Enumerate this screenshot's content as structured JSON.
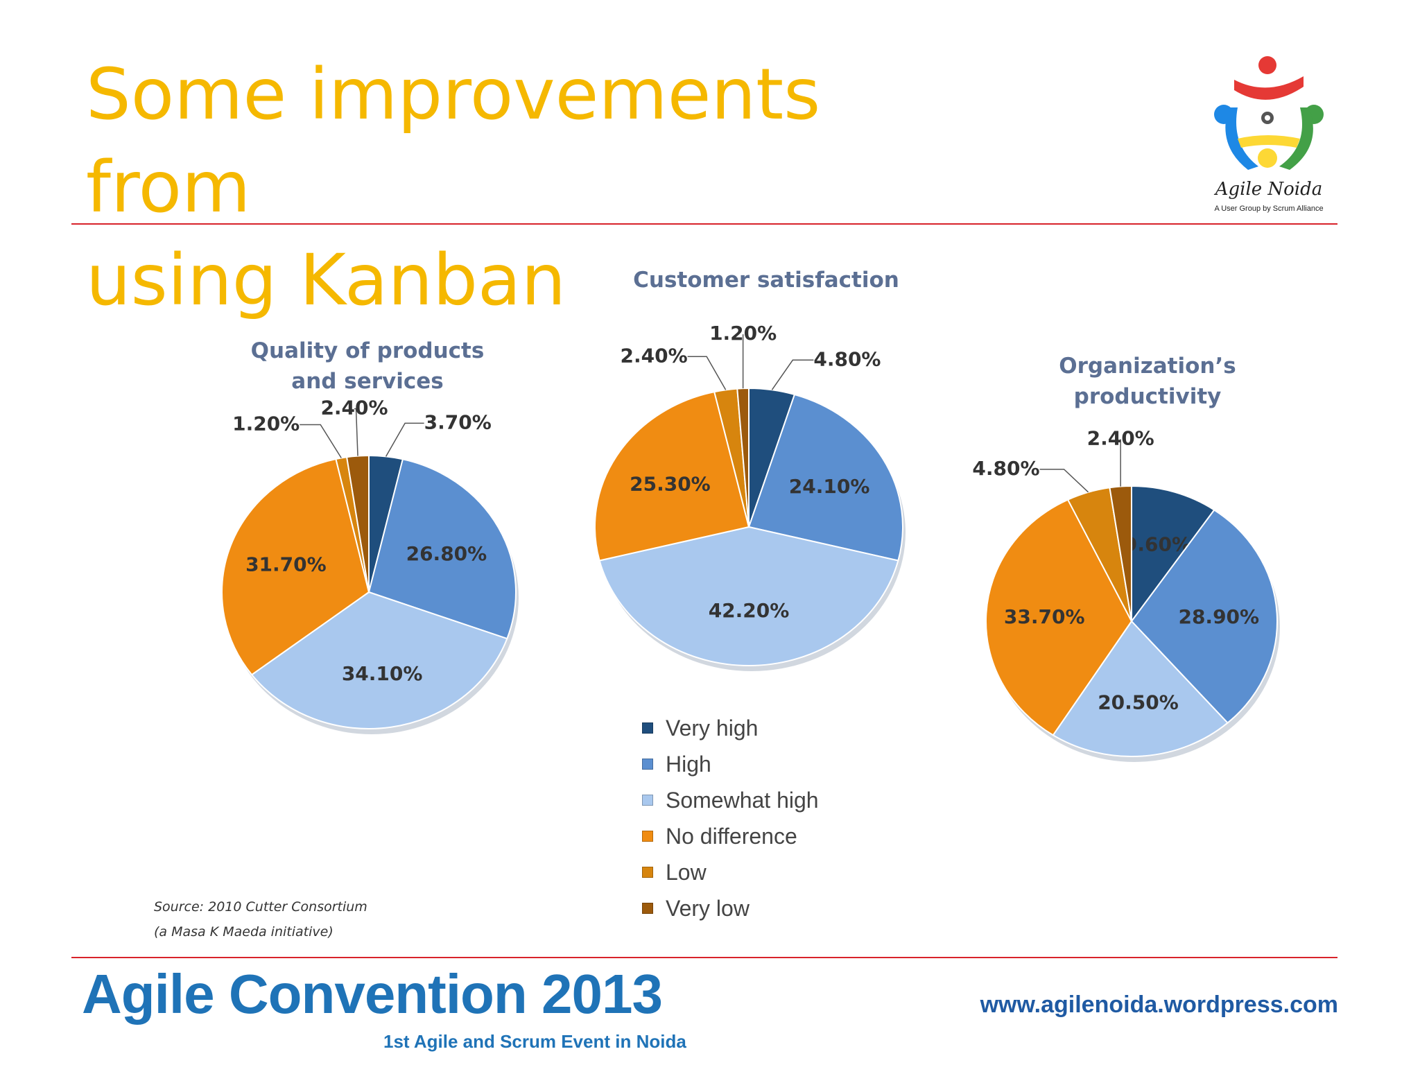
{
  "slide": {
    "title_line1": "Some improvements from",
    "title_line2": "using Kanban"
  },
  "logo": {
    "name": "Agile Noida",
    "tagline": "A User Group by Scrum Alliance"
  },
  "source": {
    "line1": "Source: 2010 Cutter Consortium",
    "line2": "(a Masa K Maeda initiative)"
  },
  "footer": {
    "title": "Agile Convention 2013",
    "subtitle": "1st Agile and Scrum Event in Noida",
    "url": "www.agilenoida.wordpress.com"
  },
  "colors": {
    "title": "#f5b800",
    "rule": "#d8222a",
    "chart_title": "#5b6f93",
    "footer": "#1f73b7"
  },
  "chart_data": [
    {
      "type": "pie",
      "title_lines": [
        "Quality of products",
        "and services"
      ],
      "categories": [
        "Very high",
        "High",
        "Somewhat high",
        "No difference",
        "Low",
        "Very low"
      ],
      "values": [
        3.7,
        26.8,
        34.1,
        31.7,
        1.2,
        2.4
      ],
      "labels": [
        "3.70%",
        "26.80%",
        "34.10%",
        "31.70%",
        "1.20%",
        "2.40%"
      ],
      "colors": [
        "#1f4e7d",
        "#5b8fd0",
        "#a9c8ee",
        "#f08c12",
        "#d7850e",
        "#9c5a0c"
      ]
    },
    {
      "type": "pie",
      "title_lines": [
        "Customer satisfaction"
      ],
      "categories": [
        "Very high",
        "High",
        "Somewhat high",
        "No difference",
        "Low",
        "Very low"
      ],
      "values": [
        4.8,
        24.1,
        42.2,
        25.3,
        2.4,
        1.2
      ],
      "labels": [
        "4.80%",
        "24.10%",
        "42.20%",
        "25.30%",
        "2.40%",
        "1.20%"
      ],
      "colors": [
        "#1f4e7d",
        "#5b8fd0",
        "#a9c8ee",
        "#f08c12",
        "#d7850e",
        "#9c5a0c"
      ]
    },
    {
      "type": "pie",
      "title_lines": [
        "Organization’s",
        "productivity"
      ],
      "categories": [
        "Very high",
        "High",
        "Somewhat high",
        "No difference",
        "Low",
        "Very low"
      ],
      "values": [
        9.6,
        28.9,
        20.5,
        33.7,
        4.8,
        2.4
      ],
      "labels": [
        "9.60%",
        "28.90%",
        "20.50%",
        "33.70%",
        "4.80%",
        "2.40%"
      ],
      "colors": [
        "#1f4e7d",
        "#5b8fd0",
        "#a9c8ee",
        "#f08c12",
        "#d7850e",
        "#9c5a0c"
      ]
    }
  ],
  "legend": {
    "items": [
      {
        "label": "Very high",
        "color": "#1f4e7d"
      },
      {
        "label": "High",
        "color": "#5b8fd0"
      },
      {
        "label": "Somewhat high",
        "color": "#a9c8ee"
      },
      {
        "label": "No difference",
        "color": "#f08c12"
      },
      {
        "label": "Low",
        "color": "#d7850e"
      },
      {
        "label": "Very low",
        "color": "#9c5a0c"
      }
    ]
  }
}
